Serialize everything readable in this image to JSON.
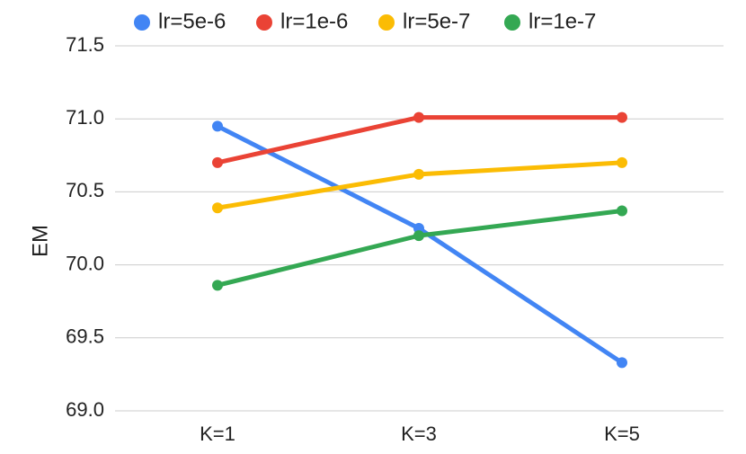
{
  "chart_data": {
    "type": "line",
    "title": "",
    "xlabel": "",
    "ylabel": "EM",
    "categories": [
      "K=1",
      "K=3",
      "K=5"
    ],
    "ylim": [
      69.0,
      71.5
    ],
    "yticks": [
      "69.0",
      "69.5",
      "70.0",
      "70.5",
      "71.0",
      "71.5"
    ],
    "grid": true,
    "legend_position": "top",
    "series": [
      {
        "name": "lr=5e-6",
        "color": "#4285F4",
        "values": [
          70.95,
          70.25,
          69.33
        ]
      },
      {
        "name": "lr=1e-6",
        "color": "#EA4335",
        "values": [
          70.7,
          71.01,
          71.01
        ]
      },
      {
        "name": "lr=5e-7",
        "color": "#FBBC04",
        "values": [
          70.39,
          70.62,
          70.7
        ]
      },
      {
        "name": "lr=1e-7",
        "color": "#34A853",
        "values": [
          69.86,
          70.2,
          70.37
        ]
      }
    ]
  }
}
